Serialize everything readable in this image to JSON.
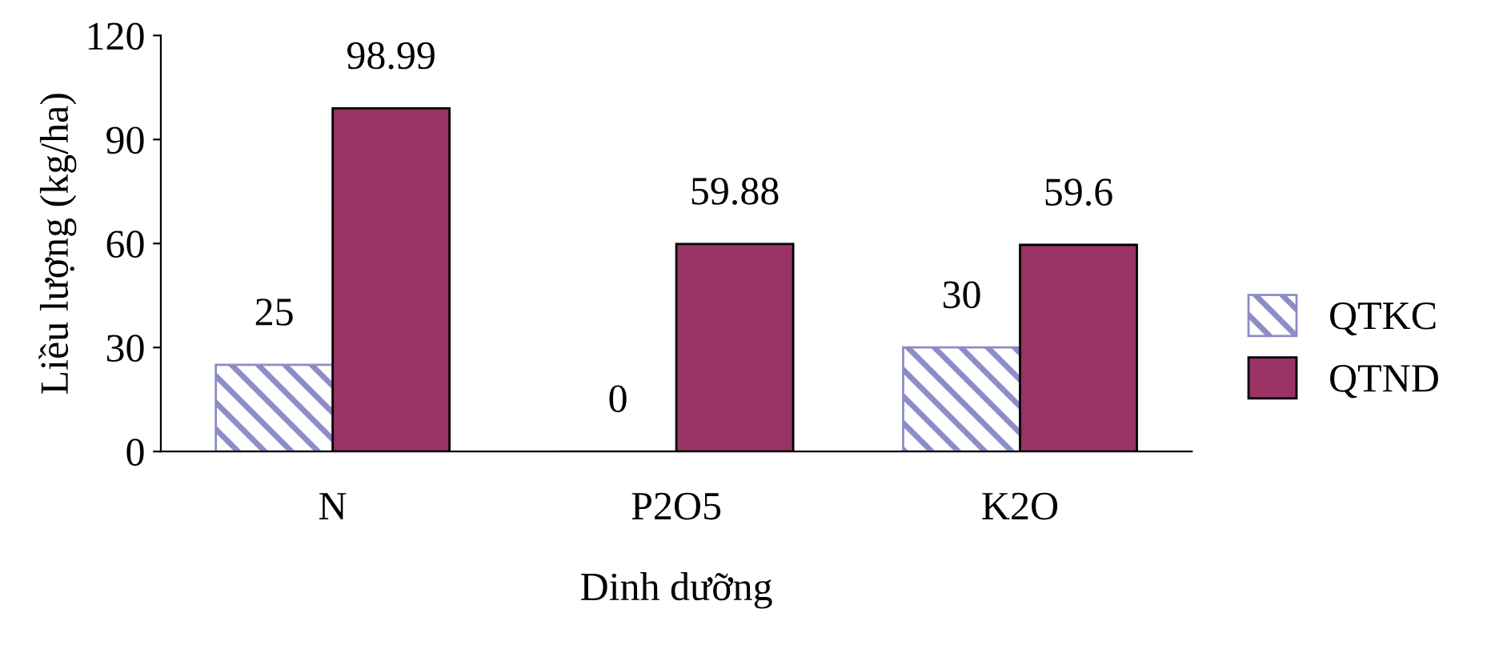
{
  "chart_data": {
    "type": "bar",
    "xlabel": "Dinh dưỡng",
    "ylabel": "Liều lượng (kg/ha)",
    "categories": [
      "N",
      "P2O5",
      "K2O"
    ],
    "series": [
      {
        "name": "QTKC",
        "color": "#8c8cc8",
        "values": [
          25,
          0,
          30
        ]
      },
      {
        "name": "QTND",
        "color": "#993366",
        "values": [
          98.99,
          59.88,
          59.6
        ]
      }
    ],
    "ylim": [
      0,
      120
    ],
    "yticks": [
      0,
      30,
      60,
      90,
      120
    ],
    "grid": false,
    "legend": "right",
    "data_labels": true
  }
}
